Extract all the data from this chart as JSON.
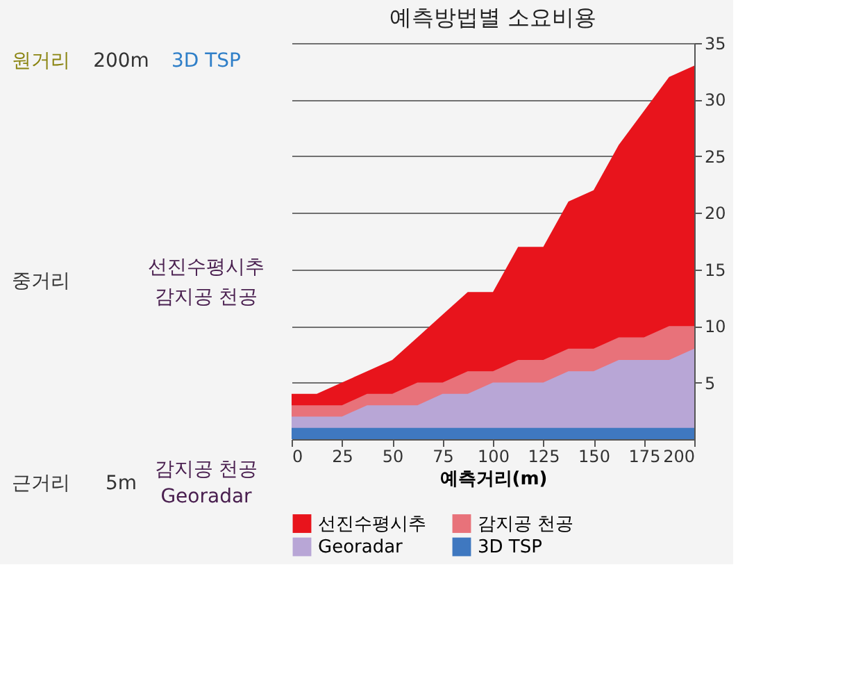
{
  "chart_data": [
    {
      "type": "other",
      "annotations": [
        "원거리",
        "200m",
        "3D TSP",
        "중거리",
        "선진수평시추",
        "감지공 천공",
        "근거리",
        "5m",
        "감지공 천공",
        "Georadar"
      ]
    },
    {
      "type": "area",
      "title": "예측방법별 소요비용",
      "xlabel": "예측거리(m)",
      "x": [
        0,
        12.5,
        25,
        37.5,
        50,
        62.5,
        75,
        87.5,
        100,
        112.5,
        125,
        137.5,
        150,
        162.5,
        175,
        187.5,
        200
      ],
      "series": [
        {
          "name": "선진수평시추",
          "color": "#e8141c",
          "values": [
            4,
            4,
            5,
            6,
            7,
            9,
            11,
            13,
            13,
            17,
            17,
            21,
            22,
            26,
            29,
            32,
            33
          ]
        },
        {
          "name": "감지공 천공",
          "color": "#e8727a",
          "values": [
            3,
            3,
            3,
            4,
            4,
            5,
            5,
            6,
            6,
            7,
            7,
            8,
            8,
            9,
            9,
            10,
            10
          ]
        },
        {
          "name": "Georadar",
          "color": "#b8a6d6",
          "values": [
            2,
            2,
            2,
            3,
            3,
            3,
            4,
            4,
            5,
            5,
            5,
            6,
            6,
            7,
            7,
            7,
            8
          ]
        },
        {
          "name": "3D TSP",
          "color": "#3f78c0",
          "values": [
            1,
            1,
            1,
            1,
            1,
            1,
            1,
            1,
            1,
            1,
            1,
            1,
            1,
            1,
            1,
            1,
            1
          ]
        }
      ],
      "xlim": [
        0,
        200
      ],
      "xticks": [
        0,
        25,
        50,
        75,
        100,
        125,
        150,
        175,
        200
      ],
      "ylim": [
        0,
        35
      ],
      "yticks": [
        5,
        10,
        15,
        20,
        25,
        30,
        35
      ],
      "grid": "y",
      "legend": "bottom"
    }
  ]
}
